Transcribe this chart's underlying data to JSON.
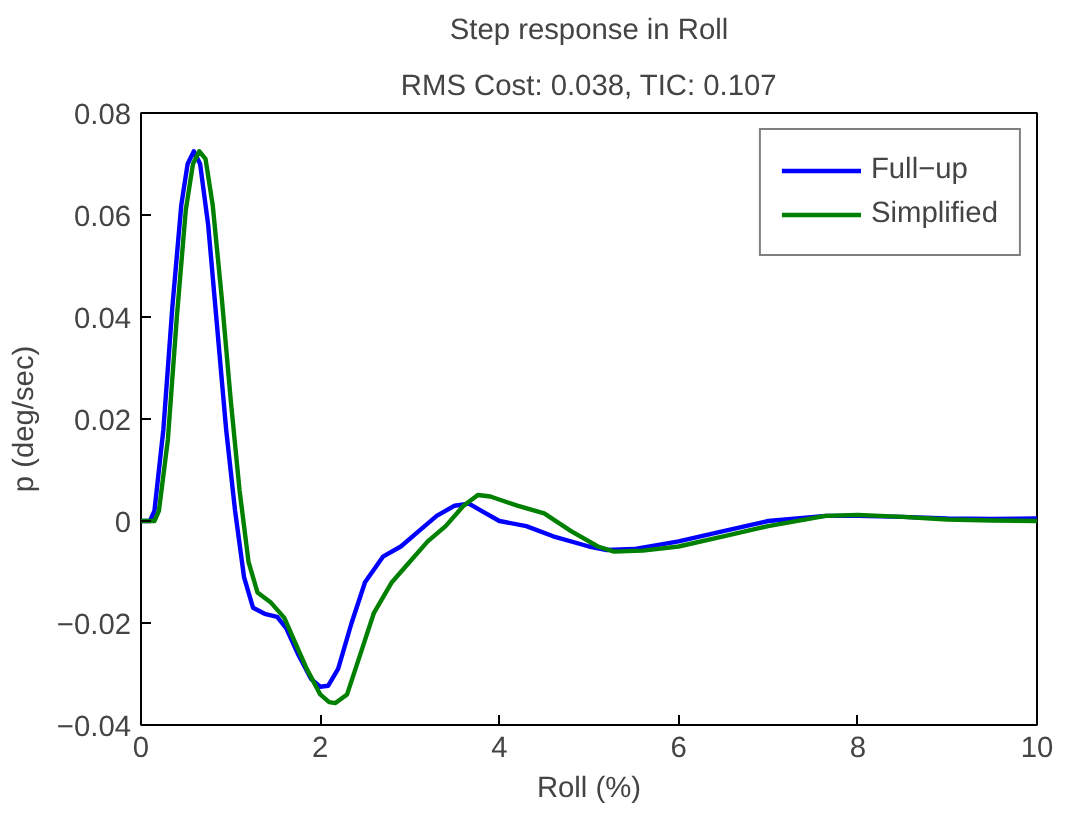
{
  "chart_data": {
    "type": "line",
    "title": "Step response in Roll",
    "subtitle": "RMS Cost: 0.038, TIC: 0.107",
    "xlabel": "Roll (%)",
    "ylabel": "p (deg/sec)",
    "xlim": [
      0,
      10
    ],
    "ylim": [
      -0.04,
      0.08
    ],
    "xticks": [
      0,
      2,
      4,
      6,
      8,
      10
    ],
    "yticks": [
      -0.04,
      -0.02,
      0,
      0.02,
      0.04,
      0.06,
      0.08
    ],
    "grid": false,
    "legend": "top right",
    "line_style": "solid",
    "series": [
      {
        "name": "Full−up",
        "color": "#0000ff",
        "x": [
          0,
          0.1,
          0.15,
          0.25,
          0.35,
          0.45,
          0.52,
          0.59,
          0.66,
          0.75,
          0.85,
          0.95,
          1.05,
          1.15,
          1.25,
          1.38,
          1.52,
          1.62,
          1.75,
          1.9,
          2.0,
          2.09,
          2.2,
          2.35,
          2.5,
          2.7,
          2.9,
          3.1,
          3.3,
          3.5,
          3.66,
          3.8,
          4.0,
          4.3,
          4.6,
          5.0,
          5.2,
          5.5,
          6.0,
          6.5,
          7.0,
          7.64,
          8.0,
          8.5,
          9.0,
          9.5,
          10
        ],
        "values": [
          0,
          0,
          0.002,
          0.018,
          0.042,
          0.062,
          0.07,
          0.0725,
          0.07,
          0.058,
          0.038,
          0.018,
          0.002,
          -0.011,
          -0.017,
          -0.0182,
          -0.0188,
          -0.021,
          -0.026,
          -0.031,
          -0.0325,
          -0.0323,
          -0.029,
          -0.02,
          -0.012,
          -0.007,
          -0.005,
          -0.002,
          0.001,
          0.003,
          0.0034,
          0.002,
          0,
          -0.001,
          -0.003,
          -0.005,
          -0.0057,
          -0.0055,
          -0.004,
          -0.002,
          0,
          0.001,
          0.001,
          0.0008,
          0.0005,
          0.0004,
          0.0005
        ]
      },
      {
        "name": "Simplified",
        "color": "#008000",
        "x": [
          0,
          0.15,
          0.2,
          0.3,
          0.4,
          0.5,
          0.58,
          0.65,
          0.72,
          0.8,
          0.9,
          1.0,
          1.1,
          1.2,
          1.3,
          1.45,
          1.6,
          1.7,
          1.85,
          2.0,
          2.1,
          2.17,
          2.3,
          2.45,
          2.6,
          2.8,
          3.0,
          3.2,
          3.4,
          3.6,
          3.76,
          3.9,
          4.2,
          4.5,
          4.8,
          5.1,
          5.28,
          5.6,
          6.0,
          6.5,
          7.0,
          7.64,
          8.0,
          8.5,
          9.0,
          9.5,
          10
        ],
        "values": [
          0,
          0,
          0.002,
          0.016,
          0.04,
          0.061,
          0.07,
          0.0725,
          0.071,
          0.062,
          0.044,
          0.024,
          0.006,
          -0.008,
          -0.014,
          -0.016,
          -0.019,
          -0.023,
          -0.029,
          -0.034,
          -0.0355,
          -0.0357,
          -0.034,
          -0.026,
          -0.018,
          -0.012,
          -0.008,
          -0.004,
          -0.001,
          0.003,
          0.0051,
          0.0048,
          0.003,
          0.0015,
          -0.002,
          -0.005,
          -0.006,
          -0.0058,
          -0.005,
          -0.003,
          -0.001,
          0.001,
          0.0012,
          0.0008,
          0.0003,
          0.0001,
          0
        ]
      }
    ]
  }
}
